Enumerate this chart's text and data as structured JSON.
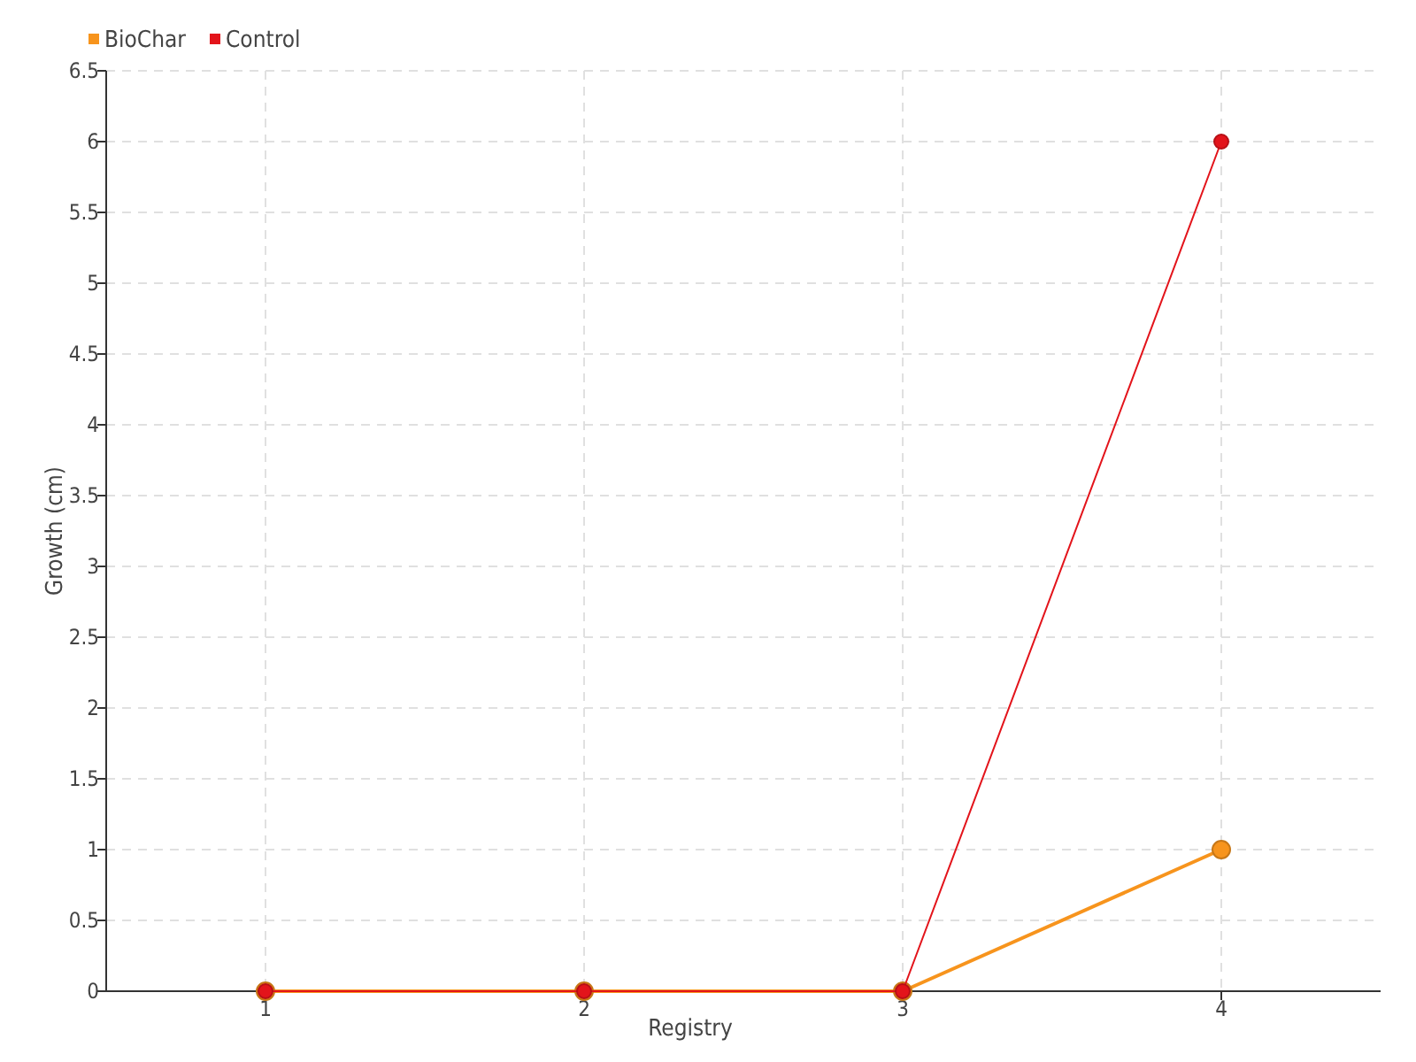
{
  "chart_data": {
    "type": "line",
    "xlabel": "Registry",
    "ylabel": "Growth (cm)",
    "categories": [
      "1",
      "2",
      "3",
      "4"
    ],
    "series": [
      {
        "name": "BioChar",
        "color": "#f7941d",
        "values": [
          0,
          0,
          0,
          1
        ]
      },
      {
        "name": "Control",
        "color": "#e3141b",
        "values": [
          0,
          0,
          0,
          6
        ]
      }
    ],
    "ylim": [
      0,
      6.5
    ],
    "yticks": [
      0,
      0.5,
      1,
      1.5,
      2,
      2.5,
      3,
      3.5,
      4,
      4.5,
      5,
      5.5,
      6,
      6.5
    ],
    "grid": true,
    "legend": "top left",
    "marker": "circle"
  }
}
